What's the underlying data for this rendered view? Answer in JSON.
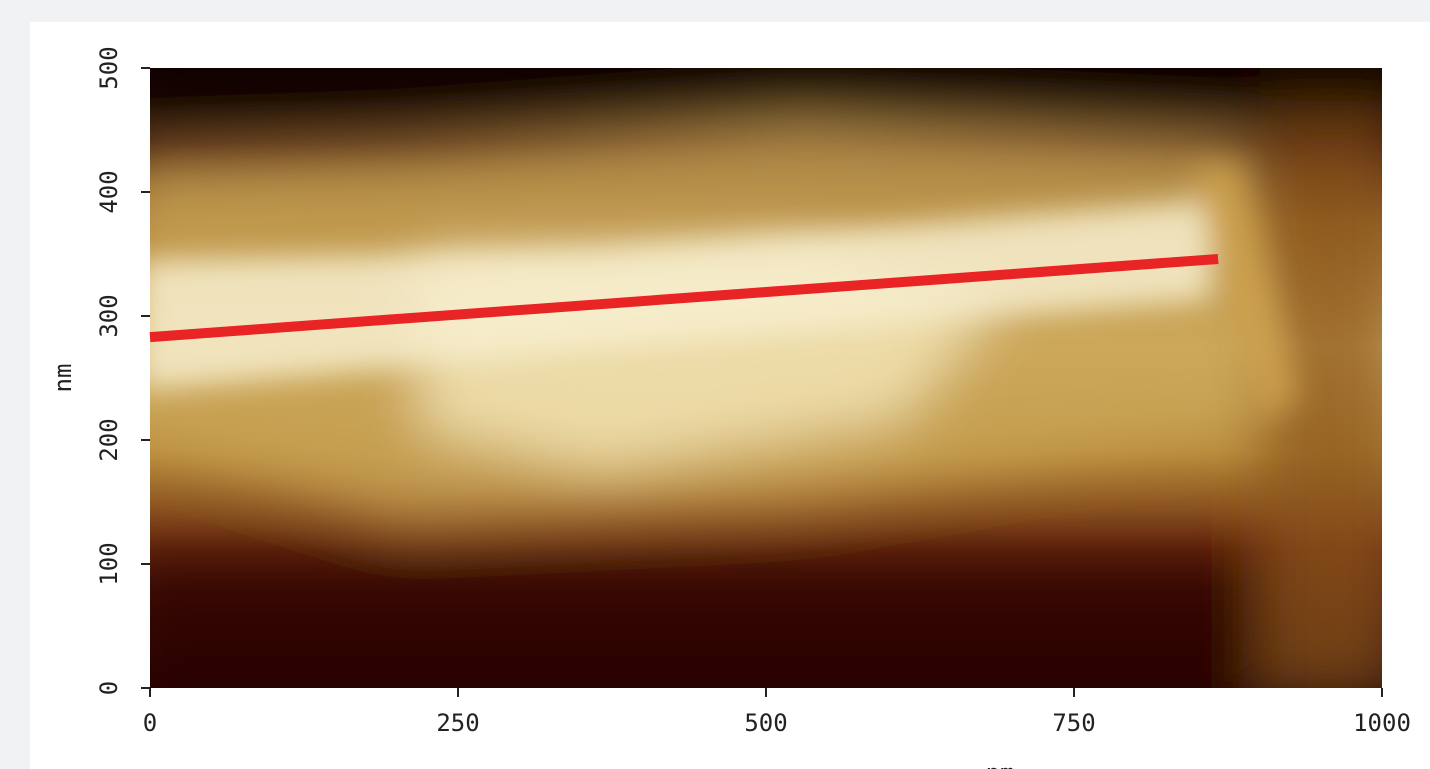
{
  "chart_data": {
    "type": "image",
    "xlabel": "nm",
    "ylabel": "nm",
    "xlim": [
      0,
      1000
    ],
    "ylim": [
      0,
      500
    ],
    "xticks": [
      0,
      250,
      500,
      750,
      1000
    ],
    "yticks": [
      0,
      100,
      200,
      300,
      400,
      500
    ],
    "profile_line": {
      "color": "#e82424",
      "x": [
        0,
        867
      ],
      "y": [
        283,
        346
      ]
    }
  }
}
